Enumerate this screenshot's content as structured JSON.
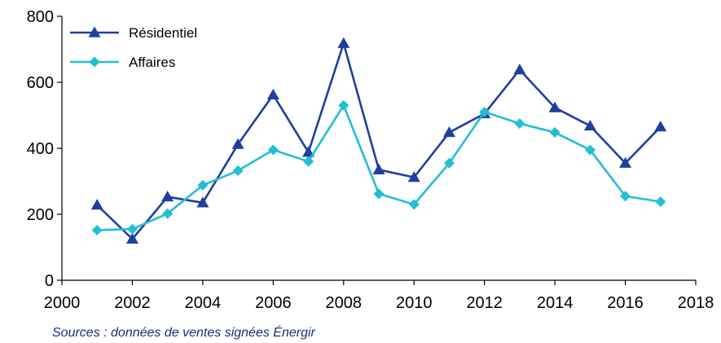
{
  "chart_data": {
    "type": "line",
    "title": "",
    "xlabel": "",
    "ylabel": "",
    "xlim": [
      2000,
      2018
    ],
    "ylim": [
      0,
      800
    ],
    "x_ticks": [
      2000,
      2002,
      2004,
      2006,
      2008,
      2010,
      2012,
      2014,
      2016,
      2018
    ],
    "y_ticks": [
      0,
      200,
      400,
      600,
      800
    ],
    "grid": false,
    "legend_position": "top-left",
    "x": [
      2001,
      2002,
      2003,
      2004,
      2005,
      2006,
      2007,
      2008,
      2009,
      2010,
      2011,
      2012,
      2013,
      2014,
      2015,
      2016,
      2017
    ],
    "series": [
      {
        "name": "Résidentiel",
        "color": "#1f3f9e",
        "marker": "triangle",
        "values": [
          228,
          125,
          253,
          235,
          412,
          562,
          388,
          718,
          335,
          312,
          448,
          505,
          638,
          523,
          468,
          355,
          465
        ]
      },
      {
        "name": "Affaires",
        "color": "#22bfd4",
        "marker": "diamond",
        "values": [
          152,
          155,
          202,
          288,
          332,
          395,
          360,
          530,
          262,
          230,
          355,
          510,
          475,
          448,
          395,
          255,
          238
        ]
      }
    ]
  },
  "source_note": "Sources : données de ventes signées Énergir"
}
